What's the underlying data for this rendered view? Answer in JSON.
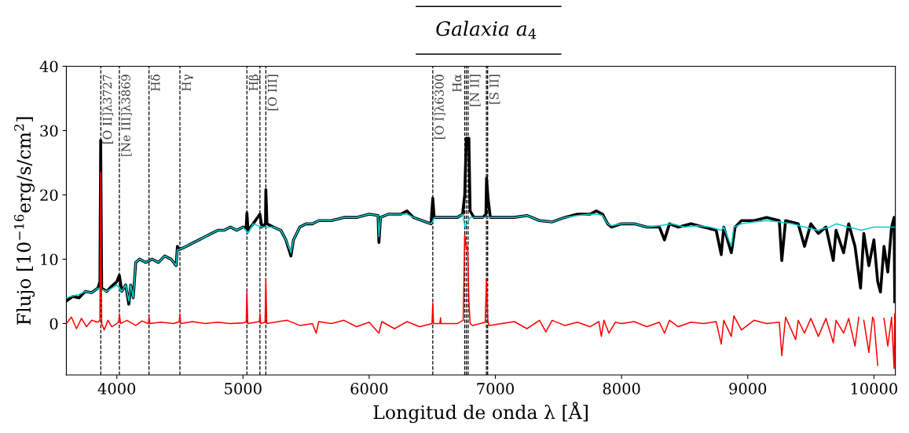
{
  "chart_data": {
    "type": "line",
    "title": "Galaxia a$_{4}$",
    "xlabel": "Longitud de onda λ [Å]",
    "ylabel": "Flujo [10$^{−16}$erg/s/cm$^{2}$]",
    "xlim": [
      3600,
      10170
    ],
    "ylim": [
      -8,
      40
    ],
    "xticks": [
      4000,
      5000,
      6000,
      7000,
      8000,
      9000,
      10000
    ],
    "yticks": [
      0,
      10,
      20,
      30,
      40
    ],
    "grid": false,
    "legend": false,
    "marker": "none",
    "line_style": "solid",
    "series": [
      {
        "color": "#000000",
        "x": [
          3600,
          3650,
          3700,
          3750,
          3800,
          3850,
          3866,
          3872,
          3880,
          3920,
          3960,
          4000,
          4020,
          4040,
          4070,
          4095,
          4110,
          4130,
          4150,
          4180,
          4230,
          4280,
          4330,
          4380,
          4430,
          4470,
          4480,
          4495,
          4550,
          4600,
          4650,
          4700,
          4750,
          4800,
          4850,
          4900,
          4950,
          5000,
          5025,
          5031,
          5040,
          5080,
          5134,
          5150,
          5178,
          5181,
          5190,
          5240,
          5300,
          5340,
          5380,
          5400,
          5450,
          5500,
          5550,
          5600,
          5700,
          5800,
          5900,
          6000,
          6070,
          6077,
          6090,
          6150,
          6250,
          6300,
          6350,
          6420,
          6490,
          6504,
          6515,
          6600,
          6700,
          6740,
          6757,
          6770,
          6790,
          6800,
          6830,
          6900,
          6925,
          6930,
          6942,
          6960,
          7050,
          7150,
          7250,
          7350,
          7450,
          7550,
          7650,
          7750,
          7800,
          7850,
          7890,
          7920,
          8000,
          8100,
          8200,
          8300,
          8340,
          8380,
          8450,
          8550,
          8650,
          8750,
          8790,
          8810,
          8870,
          8900,
          8950,
          9050,
          9150,
          9250,
          9270,
          9300,
          9400,
          9450,
          9500,
          9560,
          9620,
          9678,
          9700,
          9760,
          9800,
          9850,
          9894,
          9920,
          9960,
          10000,
          10030,
          10052,
          10080,
          10110,
          10140,
          10160,
          10165
        ],
        "values": [
          3.5,
          4.2,
          4.0,
          5.0,
          4.8,
          5.5,
          6.5,
          28.5,
          5.5,
          5.0,
          5.8,
          6.5,
          7.5,
          5.0,
          6.0,
          3.0,
          6.0,
          4.0,
          9.5,
          10.0,
          9.5,
          10.0,
          9.5,
          10.5,
          10.0,
          9.0,
          12.0,
          11.5,
          12.0,
          12.5,
          13.0,
          13.5,
          14.0,
          14.5,
          14.5,
          15.0,
          14.5,
          15.0,
          14.8,
          17.2,
          14.5,
          15.5,
          17.0,
          15.0,
          15.5,
          20.8,
          15.5,
          15.0,
          14.5,
          13.0,
          10.5,
          13.0,
          15.0,
          15.5,
          15.5,
          16.0,
          16.0,
          16.5,
          16.5,
          17.0,
          16.8,
          12.6,
          16.5,
          17.0,
          17.0,
          17.5,
          16.5,
          16.0,
          15.5,
          19.5,
          16.5,
          16.5,
          16.5,
          17.0,
          20.0,
          28.8,
          28.8,
          17.5,
          16.5,
          16.5,
          17.0,
          22.6,
          19.5,
          16.5,
          16.5,
          16.5,
          16.8,
          16.0,
          15.8,
          16.5,
          17.0,
          17.0,
          17.5,
          17.0,
          15.5,
          15.0,
          15.5,
          15.5,
          15.0,
          15.0,
          13.0,
          15.5,
          15.0,
          15.5,
          15.0,
          14.5,
          10.7,
          15.0,
          11.0,
          15.0,
          16.0,
          16.0,
          16.5,
          16.0,
          9.8,
          16.0,
          15.5,
          12.0,
          15.5,
          14.0,
          15.0,
          9.8,
          14.5,
          11.0,
          15.5,
          12.0,
          5.5,
          14.0,
          9.0,
          13.0,
          6.5,
          4.9,
          12.0,
          8.0,
          15.0,
          16.5,
          3.4
        ]
      },
      {
        "color": "#00d0d0",
        "x": [
          3600,
          3650,
          3700,
          3750,
          3800,
          3850,
          3880,
          3920,
          3960,
          4000,
          4040,
          4070,
          4095,
          4110,
          4130,
          4150,
          4180,
          4230,
          4280,
          4330,
          4380,
          4430,
          4470,
          4480,
          4495,
          4550,
          4600,
          4650,
          4700,
          4750,
          4800,
          4850,
          4900,
          4950,
          5000,
          5040,
          5080,
          5150,
          5190,
          5240,
          5300,
          5340,
          5380,
          5400,
          5450,
          5500,
          5550,
          5600,
          5700,
          5800,
          5900,
          6000,
          6070,
          6077,
          6090,
          6150,
          6250,
          6300,
          6350,
          6420,
          6490,
          6520,
          6600,
          6700,
          6740,
          6760,
          6800,
          6830,
          6900,
          6960,
          7050,
          7150,
          7250,
          7350,
          7450,
          7550,
          7650,
          7750,
          7800,
          7850,
          7890,
          7920,
          8000,
          8100,
          8200,
          8300,
          8400,
          8500,
          8600,
          8700,
          8790,
          8810,
          8870,
          8890,
          8950,
          9050,
          9150,
          9250,
          9350,
          9450,
          9550,
          9650,
          9700,
          9800,
          9900,
          10000,
          10100,
          10165
        ],
        "values": [
          4.0,
          4.3,
          4.5,
          5.0,
          4.8,
          5.5,
          5.3,
          5.0,
          5.5,
          6.0,
          5.0,
          6.0,
          3.5,
          6.0,
          4.0,
          9.5,
          10.0,
          9.5,
          10.0,
          9.5,
          10.5,
          10.0,
          9.0,
          11.5,
          11.5,
          12.0,
          12.5,
          13.0,
          13.5,
          14.0,
          14.5,
          14.5,
          15.0,
          14.5,
          15.0,
          14.0,
          15.5,
          15.0,
          15.0,
          15.0,
          14.5,
          13.0,
          11.0,
          13.0,
          15.0,
          15.5,
          15.5,
          16.0,
          16.0,
          16.5,
          16.5,
          17.0,
          16.8,
          13.5,
          16.5,
          17.0,
          17.0,
          17.0,
          16.5,
          16.0,
          15.5,
          16.5,
          16.5,
          16.5,
          17.0,
          15.0,
          16.5,
          16.5,
          16.5,
          16.5,
          16.5,
          16.5,
          16.8,
          16.0,
          15.8,
          16.5,
          16.8,
          17.0,
          17.0,
          16.8,
          15.5,
          15.2,
          15.5,
          15.5,
          15.0,
          15.2,
          15.5,
          15.0,
          15.2,
          15.0,
          14.5,
          15.0,
          12.0,
          15.0,
          15.5,
          15.8,
          16.0,
          15.8,
          15.5,
          15.0,
          14.5,
          15.0,
          15.5,
          15.0,
          14.5,
          15.0,
          15.0,
          15.0
        ]
      },
      {
        "color": "#ff0000",
        "x": [
          3600,
          3640,
          3680,
          3720,
          3760,
          3800,
          3850,
          3866,
          3872,
          3880,
          3900,
          3930,
          3960,
          4000,
          4015,
          4020,
          4030,
          4080,
          4150,
          4200,
          4250,
          4255,
          4262,
          4350,
          4450,
          4495,
          4500,
          4506,
          4600,
          4700,
          4800,
          4900,
          5000,
          5025,
          5031,
          5038,
          5100,
          5130,
          5134,
          5140,
          5175,
          5181,
          5188,
          5250,
          5350,
          5450,
          5550,
          5580,
          5600,
          5700,
          5800,
          5900,
          6000,
          6077,
          6100,
          6200,
          6300,
          6400,
          6498,
          6504,
          6510,
          6560,
          6565,
          6570,
          6700,
          6745,
          6757,
          6770,
          6780,
          6790,
          6800,
          6820,
          6920,
          6929,
          6940,
          6950,
          7050,
          7150,
          7250,
          7350,
          7400,
          7450,
          7550,
          7650,
          7750,
          7820,
          7840,
          7860,
          7900,
          7950,
          8000,
          8100,
          8200,
          8300,
          8340,
          8380,
          8450,
          8550,
          8650,
          8750,
          8790,
          8810,
          8870,
          8890,
          8950,
          9050,
          9150,
          9250,
          9270,
          9300,
          9380,
          9400,
          9450,
          9500,
          9560,
          9620,
          9678,
          9700,
          9760,
          9800,
          9850,
          9880,
          9894,
          9920,
          9960,
          9990,
          10000,
          10030,
          10052,
          10080,
          10110,
          10140,
          10160,
          10165
        ],
        "values": [
          0.0,
          1.0,
          -0.8,
          0.8,
          -0.5,
          0.5,
          0.2,
          0.5,
          23.5,
          0.0,
          -1.0,
          0.5,
          -0.5,
          0.0,
          0.3,
          1.5,
          0.0,
          0.5,
          -0.3,
          0.4,
          0.0,
          1.0,
          0.0,
          0.2,
          0.0,
          0.3,
          1.5,
          0.0,
          0.3,
          0.0,
          0.2,
          0.0,
          0.1,
          0.2,
          5.0,
          0.0,
          0.2,
          0.3,
          1.5,
          0.0,
          0.2,
          6.9,
          0.0,
          0.2,
          0.5,
          -0.3,
          0.0,
          -1.5,
          0.3,
          0.0,
          0.5,
          -0.5,
          0.2,
          -1.5,
          0.3,
          -0.8,
          0.3,
          -0.5,
          0.0,
          3.2,
          0.0,
          0.0,
          0.9,
          0.0,
          0.0,
          0.5,
          13.8,
          11.5,
          12.0,
          3.5,
          0.0,
          -0.3,
          0.2,
          6.9,
          0.5,
          -0.3,
          0.0,
          0.3,
          -0.8,
          0.5,
          -1.3,
          0.5,
          -0.3,
          0.2,
          -0.5,
          0.3,
          -2.0,
          0.5,
          -1.5,
          0.2,
          0.0,
          0.3,
          -0.5,
          0.2,
          -1.5,
          0.5,
          -0.5,
          0.2,
          0.0,
          0.3,
          -3.2,
          0.5,
          -2.0,
          1.2,
          -1.0,
          0.5,
          0.0,
          0.2,
          -5.0,
          1.0,
          -2.5,
          0.5,
          -1.5,
          0.8,
          -2.0,
          0.8,
          -3.0,
          0.5,
          -1.5,
          0.8,
          -3.5,
          1.0,
          null,
          0.5,
          -4.5,
          1.0,
          0.5,
          -6.5,
          null,
          0.8,
          -3.5,
          1.0,
          -7.0,
          1.5
        ]
      }
    ],
    "ref_lines": [
      {
        "axis": "x",
        "value": 3873,
        "label": "[O II]λ3727",
        "color": "#000000",
        "line_style": "dashed"
      },
      {
        "axis": "x",
        "value": 4020,
        "label": "[Ne III]λ3869",
        "color": "#000000",
        "line_style": "dashed"
      },
      {
        "axis": "x",
        "value": 4255,
        "label": "Hδ",
        "color": "#000000",
        "line_style": "dashed"
      },
      {
        "axis": "x",
        "value": 4500,
        "label": "Hγ",
        "color": "#000000",
        "line_style": "dashed"
      },
      {
        "axis": "x",
        "value": 5031,
        "label": "Hβ",
        "color": "#000000",
        "line_style": "dashed"
      },
      {
        "axis": "x",
        "value": 5134,
        "color": "#000000",
        "line_style": "dashed"
      },
      {
        "axis": "x",
        "value": 5181,
        "label": "[O III]",
        "color": "#000000",
        "line_style": "dashed"
      },
      {
        "axis": "x",
        "value": 6504,
        "label": "[O I]λ6300",
        "color": "#000000",
        "line_style": "dashed"
      },
      {
        "axis": "x",
        "value": 6757,
        "label": "Hα",
        "color": "#000000",
        "line_style": "dashed"
      },
      {
        "axis": "x",
        "value": 6770,
        "color": "#000000",
        "line_style": "dashed"
      },
      {
        "axis": "x",
        "value": 6784,
        "label": "[N II]",
        "color": "#000000",
        "line_style": "dashed"
      },
      {
        "axis": "x",
        "value": 6929,
        "color": "#000000",
        "line_style": "dashed"
      },
      {
        "axis": "x",
        "value": 6939,
        "label": "[S II]",
        "color": "#000000",
        "line_style": "dashed"
      }
    ]
  }
}
